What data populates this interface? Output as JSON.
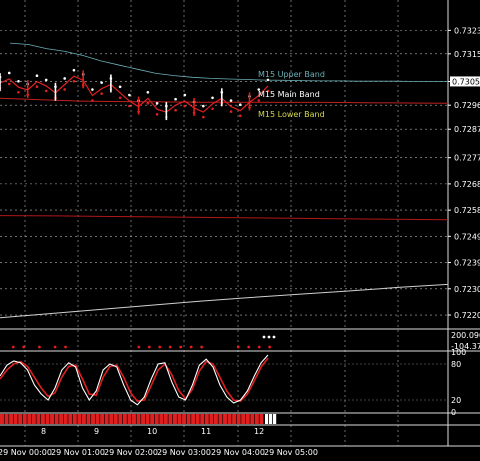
{
  "chart_data": {
    "type": "line",
    "title": "",
    "main_panel": {
      "ylim": [
        0.72158,
        0.73346
      ],
      "y_ticks": [
        "0.73236",
        "0.73151",
        "0.73051",
        "0.72965",
        "0.72878",
        "0.72775",
        "0.72680",
        "0.72585",
        "0.72490",
        "0.72395",
        "0.72300",
        "0.72205"
      ],
      "current_price": "0.73051",
      "band_labels": {
        "upper": "M15 Upper Band",
        "main": "M15 Main Band",
        "lower": "M15 Lower Band"
      },
      "price_series": [
        0.73045,
        0.7306,
        0.7303,
        0.7302,
        0.7305,
        0.73035,
        0.7301,
        0.7304,
        0.7307,
        0.73055,
        0.73,
        0.73025,
        0.7304,
        0.7301,
        0.7298,
        0.7296,
        0.7299,
        0.7295,
        0.7294,
        0.72965,
        0.7298,
        0.72955,
        0.7294,
        0.7297,
        0.7299,
        0.7296,
        0.72945,
        0.72975,
        0.73,
        0.73035
      ],
      "upper_band": [
        0.7319,
        0.73185,
        0.7317,
        0.7316,
        0.73145,
        0.73125,
        0.7311,
        0.73095,
        0.7308,
        0.73072,
        0.73066,
        0.73062,
        0.7306,
        0.73058,
        0.73056,
        0.73055,
        0.73054,
        0.73053,
        0.73053,
        0.73052,
        0.73052,
        0.73052,
        0.73051,
        0.73051,
        0.73051
      ],
      "red_band": [
        0.7299,
        0.72985,
        0.7298,
        0.72978,
        0.72977,
        0.72976,
        0.72976,
        0.72975,
        0.72975,
        0.72974,
        0.72973,
        0.72972
      ],
      "lower_red_line": [
        0.72565,
        0.72564,
        0.72562,
        0.7256,
        0.72558,
        0.72556,
        0.72554,
        0.72552,
        0.7255
      ],
      "white_line": [
        0.72195,
        0.7221,
        0.72225,
        0.7224,
        0.72255,
        0.72268,
        0.7228,
        0.72292,
        0.72305,
        0.72316
      ]
    },
    "sub_panel_1": {
      "values": [
        "200.0908",
        "-104.3762"
      ],
      "red_dots": [
        0.1,
        0.3,
        0.6,
        0.9,
        1.1,
        2.5,
        2.7,
        2.9,
        3.1,
        3.3,
        3.5,
        3.7,
        4.4,
        4.6,
        4.8,
        5.0
      ]
    },
    "stochastic": {
      "ylim": [
        0,
        100
      ],
      "ticks": [
        "100",
        "80",
        "20",
        "0"
      ],
      "main": [
        60,
        78,
        85,
        82,
        70,
        45,
        30,
        20,
        40,
        70,
        82,
        75,
        40,
        20,
        35,
        70,
        80,
        75,
        45,
        20,
        12,
        25,
        55,
        80,
        82,
        50,
        25,
        20,
        45,
        78,
        88,
        75,
        45,
        25,
        15,
        20,
        35,
        60,
        82,
        95
      ],
      "signal": [
        55,
        70,
        80,
        84,
        76,
        58,
        40,
        26,
        32,
        58,
        76,
        78,
        55,
        30,
        28,
        58,
        76,
        78,
        58,
        32,
        18,
        20,
        44,
        70,
        80,
        62,
        36,
        22,
        38,
        68,
        84,
        80,
        58,
        35,
        20,
        18,
        30,
        52,
        75,
        90
      ]
    },
    "histogram_panel": {
      "red_bars": 58,
      "white_bars": 3
    },
    "x_labels_upper": [
      "8",
      "9",
      "10",
      "11",
      "12"
    ],
    "x_labels_time": [
      "29 Nov 00:00",
      "29 Nov 01:00",
      "29 Nov 02:00",
      "29 Nov 03:00",
      "29 Nov 04:00",
      "29 Nov 05:00"
    ]
  },
  "colors": {
    "background": "#000000",
    "grid": "#b4b4b4",
    "price_label_bg": "#ffffff",
    "upper_band": "#6ab0b8",
    "main_band": "#ffffff",
    "lower_band": "#d7d94a",
    "red": "#e02020",
    "white": "#ffffff"
  }
}
